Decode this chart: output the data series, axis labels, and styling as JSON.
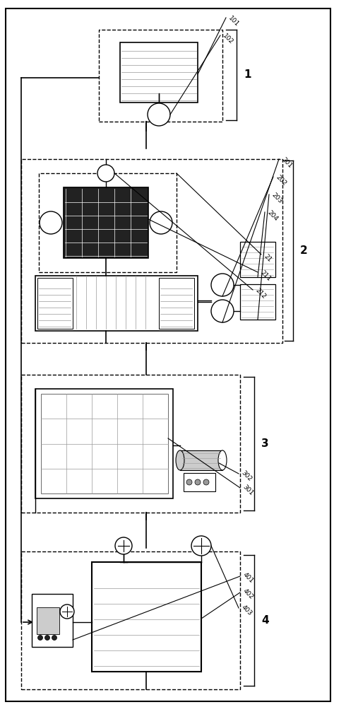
{
  "fig_width": 4.9,
  "fig_height": 10.0,
  "bg_color": "#ffffff",
  "lc": "#000000",
  "mgray": "#999999",
  "lgray": "#cccccc",
  "dark": "#222222",
  "dashed_lw": 1.0,
  "outer_lw": 1.5
}
